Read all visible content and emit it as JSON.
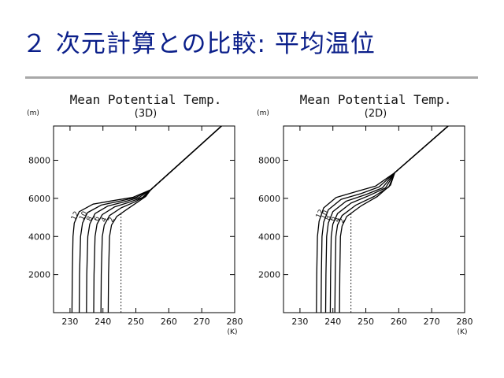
{
  "slide": {
    "title": "２ 次元計算との比較: 平均温位"
  },
  "chart_data": [
    {
      "type": "line",
      "title": "Mean Potential Temp.",
      "subtitle": "(3D)",
      "xunit": "(K)",
      "yunit": "(m)",
      "xlim": [
        225,
        280
      ],
      "ylim": [
        0,
        9800
      ],
      "xticks": [
        230,
        240,
        250,
        260,
        270,
        280
      ],
      "yticks": [
        2000,
        4000,
        6000,
        8000
      ],
      "contour_labels": [
        "12",
        "10",
        "8",
        "6",
        "4",
        "2"
      ],
      "dashed_x": 245.5,
      "dashed_top": 5300,
      "series": [
        {
          "points": [
            [
              230.6,
              0
            ],
            [
              230.7,
              2000
            ],
            [
              230.9,
              4000
            ],
            [
              231.3,
              4700
            ],
            [
              232.8,
              5300
            ],
            [
              237,
              5700
            ],
            [
              243,
              5880
            ],
            [
              249,
              6050
            ],
            [
              254.5,
              6450
            ],
            [
              276,
              9800
            ]
          ]
        },
        {
          "points": [
            [
              232.8,
              0
            ],
            [
              232.9,
              2000
            ],
            [
              233.2,
              4000
            ],
            [
              233.8,
              4700
            ],
            [
              235.3,
              5250
            ],
            [
              239.5,
              5650
            ],
            [
              245,
              5850
            ],
            [
              250,
              6050
            ],
            [
              254.5,
              6450
            ],
            [
              276,
              9800
            ]
          ]
        },
        {
          "points": [
            [
              235.0,
              0
            ],
            [
              235.1,
              2000
            ],
            [
              235.4,
              4000
            ],
            [
              236.0,
              4650
            ],
            [
              237.6,
              5200
            ],
            [
              241.5,
              5600
            ],
            [
              246.5,
              5820
            ],
            [
              251,
              6050
            ],
            [
              254.5,
              6450
            ],
            [
              276,
              9800
            ]
          ]
        },
        {
          "points": [
            [
              237.2,
              0
            ],
            [
              237.3,
              2000
            ],
            [
              237.6,
              4000
            ],
            [
              238.2,
              4650
            ],
            [
              239.8,
              5150
            ],
            [
              243.5,
              5550
            ],
            [
              248,
              5800
            ],
            [
              252,
              6050
            ],
            [
              254.5,
              6450
            ],
            [
              276,
              9800
            ]
          ]
        },
        {
          "points": [
            [
              239.4,
              0
            ],
            [
              239.5,
              2000
            ],
            [
              239.8,
              4000
            ],
            [
              240.4,
              4600
            ],
            [
              242.0,
              5100
            ],
            [
              245.5,
              5500
            ],
            [
              249.5,
              5800
            ],
            [
              252.5,
              6080
            ],
            [
              254.5,
              6450
            ],
            [
              276,
              9800
            ]
          ]
        },
        {
          "points": [
            [
              241.6,
              0
            ],
            [
              241.7,
              2000
            ],
            [
              242.0,
              4000
            ],
            [
              242.6,
              4600
            ],
            [
              244.2,
              5050
            ],
            [
              247.5,
              5450
            ],
            [
              250.5,
              5800
            ],
            [
              253,
              6100
            ],
            [
              254.5,
              6450
            ],
            [
              276,
              9800
            ]
          ]
        }
      ]
    },
    {
      "type": "line",
      "title": "Mean Potential Temp.",
      "subtitle": "(2D)",
      "xunit": "(K)",
      "yunit": "(m)",
      "xlim": [
        225,
        280
      ],
      "ylim": [
        0,
        9800
      ],
      "xticks": [
        230,
        240,
        250,
        260,
        270,
        280
      ],
      "yticks": [
        2000,
        4000,
        6000,
        8000
      ],
      "contour_labels": [
        "12",
        "10",
        "8",
        "6",
        "4",
        "2"
      ],
      "dashed_x": 245.5,
      "dashed_top": 5300,
      "series": [
        {
          "points": [
            [
              235.0,
              0
            ],
            [
              235.1,
              2000
            ],
            [
              235.3,
              4000
            ],
            [
              235.8,
              4800
            ],
            [
              237.2,
              5500
            ],
            [
              241,
              6050
            ],
            [
              247,
              6350
            ],
            [
              253,
              6650
            ],
            [
              258.8,
              7350
            ],
            [
              275,
              9800
            ]
          ]
        },
        {
          "points": [
            [
              236.4,
              0
            ],
            [
              236.5,
              2000
            ],
            [
              236.7,
              4000
            ],
            [
              237.2,
              4750
            ],
            [
              238.6,
              5400
            ],
            [
              242.5,
              5950
            ],
            [
              248.5,
              6250
            ],
            [
              254,
              6600
            ],
            [
              258.8,
              7350
            ],
            [
              275,
              9800
            ]
          ]
        },
        {
          "points": [
            [
              237.8,
              0
            ],
            [
              237.9,
              2000
            ],
            [
              238.1,
              4000
            ],
            [
              238.6,
              4700
            ],
            [
              240.0,
              5300
            ],
            [
              244,
              5850
            ],
            [
              250,
              6200
            ],
            [
              255,
              6550
            ],
            [
              258.8,
              7350
            ],
            [
              275,
              9800
            ]
          ]
        },
        {
          "points": [
            [
              239.2,
              0
            ],
            [
              239.3,
              2000
            ],
            [
              239.5,
              4000
            ],
            [
              240.0,
              4650
            ],
            [
              241.4,
              5200
            ],
            [
              245.5,
              5750
            ],
            [
              251,
              6150
            ],
            [
              256,
              6550
            ],
            [
              258.8,
              7350
            ],
            [
              275,
              9800
            ]
          ]
        },
        {
          "points": [
            [
              240.6,
              0
            ],
            [
              240.7,
              2000
            ],
            [
              240.9,
              4000
            ],
            [
              241.4,
              4600
            ],
            [
              242.8,
              5100
            ],
            [
              247,
              5650
            ],
            [
              252.5,
              6100
            ],
            [
              257,
              6600
            ],
            [
              258.8,
              7350
            ],
            [
              275,
              9800
            ]
          ]
        },
        {
          "points": [
            [
              242.0,
              0
            ],
            [
              242.1,
              2000
            ],
            [
              242.3,
              4000
            ],
            [
              242.8,
              4550
            ],
            [
              244.2,
              5050
            ],
            [
              248.5,
              5600
            ],
            [
              253.5,
              6100
            ],
            [
              257.5,
              6700
            ],
            [
              258.8,
              7350
            ],
            [
              275,
              9800
            ]
          ]
        }
      ]
    }
  ]
}
